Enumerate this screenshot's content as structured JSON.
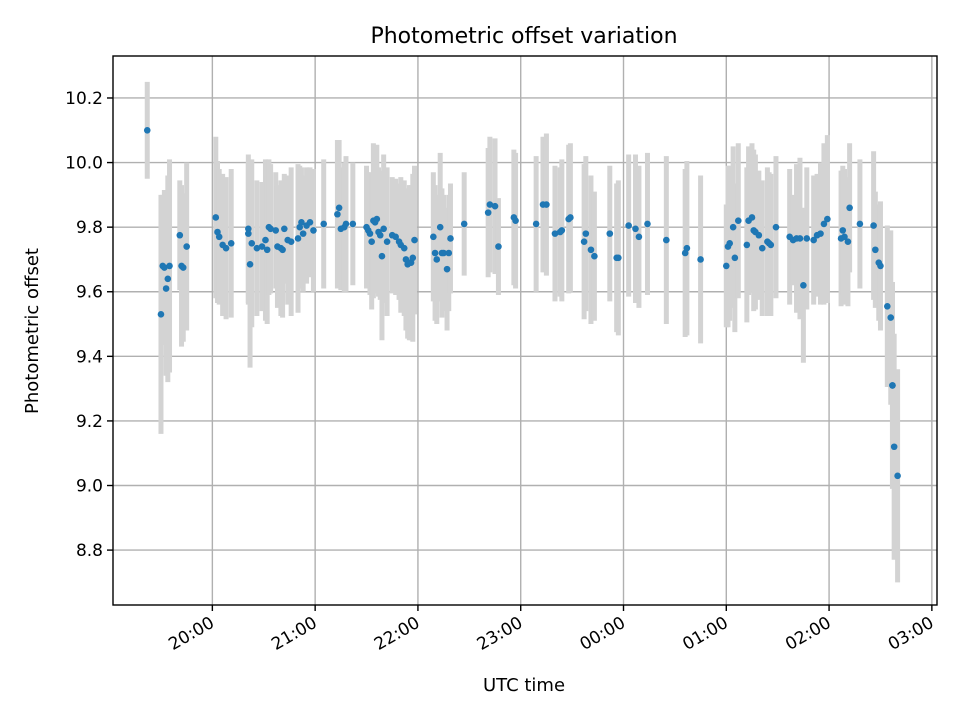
{
  "chart_data": {
    "type": "scatter",
    "title": "Photometric offset variation",
    "xlabel": "UTC time",
    "ylabel": "Photometric offset",
    "x_ticks": [
      "20:00",
      "21:00",
      "22:00",
      "23:00",
      "00:00",
      "01:00",
      "02:00",
      "03:00"
    ],
    "y_ticks": [
      "8.8",
      "9.0",
      "9.2",
      "9.4",
      "9.6",
      "9.8",
      "10.0",
      "10.2"
    ],
    "xlim": [
      "19:02",
      "03:03"
    ],
    "ylim": [
      8.63,
      10.33
    ],
    "grid": true,
    "colors": {
      "point": "#1f77b4",
      "errorbar": "#d3d3d3"
    },
    "series": [
      {
        "x": [
          "19:22",
          "19:30",
          "19:31",
          "19:32",
          "19:33",
          "19:34",
          "19:35",
          "19:41",
          "19:42",
          "19:43",
          "19:45",
          "20:02",
          "20:03",
          "20:04",
          "20:06",
          "20:08",
          "20:11",
          "20:21",
          "20:21",
          "20:22",
          "20:23",
          "20:26",
          "20:29",
          "20:31",
          "20:32",
          "20:33",
          "20:34",
          "20:37",
          "20:38",
          "20:40",
          "20:41",
          "20:42",
          "20:44",
          "20:46",
          "20:50",
          "20:51",
          "20:52",
          "20:53",
          "20:55",
          "20:57",
          "20:59",
          "21:05",
          "21:13",
          "21:14",
          "21:15",
          "21:17",
          "21:18",
          "21:22",
          "21:30",
          "21:31",
          "21:32",
          "21:33",
          "21:34",
          "21:35",
          "21:36",
          "21:37",
          "21:38",
          "21:39",
          "21:40",
          "21:42",
          "21:45",
          "21:47",
          "21:49",
          "21:50",
          "21:52",
          "21:53",
          "21:54",
          "21:55",
          "21:56",
          "21:57",
          "21:58",
          "22:09",
          "22:10",
          "22:11",
          "22:13",
          "22:14",
          "22:15",
          "22:17",
          "22:18",
          "22:19",
          "22:27",
          "22:41",
          "22:42",
          "22:45",
          "22:47",
          "22:56",
          "22:57",
          "23:09",
          "23:13",
          "23:15",
          "23:20",
          "23:23",
          "23:24",
          "23:28",
          "23:29",
          "23:37",
          "23:38",
          "23:41",
          "23:43",
          "23:52",
          "23:56",
          "23:57",
          "00:03",
          "00:07",
          "00:09",
          "00:14",
          "00:25",
          "00:36",
          "00:37",
          "00:45",
          "01:00",
          "01:01",
          "01:02",
          "01:04",
          "01:05",
          "01:07",
          "01:12",
          "01:13",
          "01:15",
          "01:16",
          "01:17",
          "01:19",
          "01:21",
          "01:24",
          "01:25",
          "01:26",
          "01:29",
          "01:37",
          "01:39",
          "01:41",
          "01:43",
          "01:45",
          "01:47",
          "01:51",
          "01:53",
          "01:55",
          "01:57",
          "01:59",
          "02:07",
          "02:08",
          "02:09",
          "02:11",
          "02:12",
          "02:18",
          "02:26",
          "02:27",
          "02:29",
          "02:30",
          "02:34",
          "02:36",
          "02:37"
        ],
        "y": [
          10.1,
          9.53,
          9.68,
          9.675,
          9.61,
          9.64,
          9.68,
          9.775,
          9.68,
          9.675,
          9.74,
          9.83,
          9.785,
          9.77,
          9.745,
          9.735,
          9.75,
          9.78,
          9.795,
          9.685,
          9.75,
          9.735,
          9.74,
          9.76,
          9.73,
          9.8,
          9.795,
          9.79,
          9.74,
          9.735,
          9.73,
          9.795,
          9.76,
          9.755,
          9.765,
          9.8,
          9.815,
          9.78,
          9.805,
          9.815,
          9.79,
          9.81,
          9.84,
          9.86,
          9.795,
          9.8,
          9.81,
          9.81,
          9.8,
          9.79,
          9.78,
          9.755,
          9.82,
          9.815,
          9.825,
          9.785,
          9.775,
          9.71,
          9.795,
          9.755,
          9.775,
          9.77,
          9.755,
          9.745,
          9.735,
          9.7,
          9.685,
          9.69,
          9.69,
          9.705,
          9.76,
          9.77,
          9.72,
          9.7,
          9.8,
          9.72,
          9.72,
          9.67,
          9.72,
          9.765,
          9.81,
          9.845,
          9.87,
          9.865,
          9.74,
          9.83,
          9.82,
          9.81,
          9.87,
          9.87,
          9.78,
          9.785,
          9.79,
          9.825,
          9.83,
          9.755,
          9.78,
          9.73,
          9.71,
          9.78,
          9.705,
          9.705,
          9.805,
          9.795,
          9.77,
          9.81,
          9.76,
          9.72,
          9.735,
          9.7,
          9.68,
          9.74,
          9.75,
          9.8,
          9.705,
          9.82,
          9.745,
          9.82,
          9.83,
          9.79,
          9.785,
          9.775,
          9.735,
          9.755,
          9.75,
          9.745,
          9.8,
          9.77,
          9.76,
          9.765,
          9.765,
          9.62,
          9.765,
          9.76,
          9.775,
          9.78,
          9.81,
          9.825,
          9.765,
          9.79,
          9.77,
          9.755,
          9.86,
          9.81,
          9.805,
          9.73,
          9.69,
          9.68,
          9.555,
          9.52,
          9.31
        ],
        "err": [
          0.15,
          0.37,
          0.22,
          0.24,
          0.27,
          0.32,
          0.33,
          0.17,
          0.25,
          0.23,
          0.26,
          0.25,
          0.22,
          0.21,
          0.22,
          0.22,
          0.23,
          0.22,
          0.23,
          0.32,
          0.26,
          0.21,
          0.2,
          0.25,
          0.23,
          0.21,
          0.2,
          0.18,
          0.19,
          0.21,
          0.21,
          0.17,
          0.2,
          0.23,
          0.23,
          0.19,
          0.17,
          0.18,
          0.18,
          0.17,
          0.19,
          0.2,
          0.23,
          0.21,
          0.19,
          0.2,
          0.21,
          0.19,
          0.19,
          0.18,
          0.19,
          0.21,
          0.24,
          0.22,
          0.23,
          0.2,
          0.2,
          0.26,
          0.23,
          0.23,
          0.18,
          0.18,
          0.18,
          0.21,
          0.21,
          0.22,
          0.23,
          0.24,
          0.24,
          0.26,
          0.23,
          0.2,
          0.21,
          0.2,
          0.23,
          0.2,
          0.18,
          0.19,
          0.18,
          0.17,
          0.16,
          0.2,
          0.21,
          0.21,
          0.15,
          0.21,
          0.21,
          0.21,
          0.21,
          0.22,
          0.21,
          0.2,
          0.22,
          0.23,
          0.23,
          0.24,
          0.24,
          0.23,
          0.2,
          0.21,
          0.23,
          0.24,
          0.22,
          0.23,
          0.22,
          0.22,
          0.26,
          0.26,
          0.27,
          0.26,
          0.19,
          0.25,
          0.24,
          0.25,
          0.23,
          0.24,
          0.24,
          0.23,
          0.23,
          0.25,
          0.24,
          0.2,
          0.21,
          0.23,
          0.22,
          0.22,
          0.22,
          0.21,
          0.14,
          0.23,
          0.25,
          0.24,
          0.22,
          0.2,
          0.19,
          0.22,
          0.25,
          0.26,
          0.21,
          0.2,
          0.21,
          0.2,
          0.2,
          0.2,
          0.23,
          0.18,
          0.18,
          0.2,
          0.25,
          0.27,
          0.32
        ]
      },
      {
        "x": [
          "02:37",
          "02:38",
          "02:40"
        ],
        "y": [
          9.31,
          9.12,
          9.03
        ],
        "err": [
          0.32,
          0.35,
          0.33
        ]
      }
    ]
  }
}
